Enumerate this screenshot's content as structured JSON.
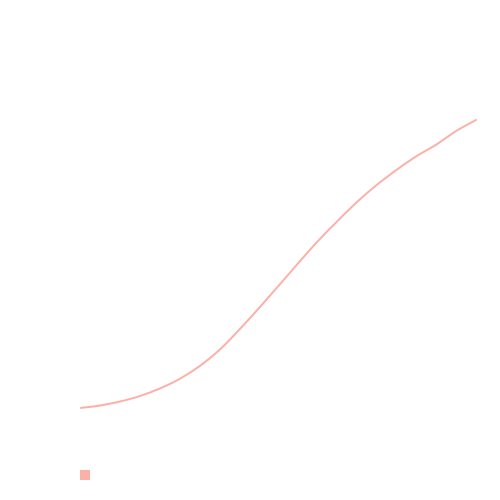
{
  "chart_data": {
    "type": "line",
    "title": "",
    "xlabel": "",
    "ylabel": "",
    "grid": false,
    "axes_visible": false,
    "legend": {
      "placement": "bottom-left",
      "entries": [
        {
          "label": "",
          "color": "#fbb1a8"
        }
      ]
    },
    "series": [
      {
        "name": "",
        "color": "#fbb1a8",
        "x": [
          0,
          5,
          10,
          15,
          20,
          25,
          30,
          35,
          40,
          45,
          50,
          55,
          60,
          65,
          70,
          75,
          80,
          85,
          90,
          95,
          100
        ],
        "y": [
          0,
          0.9,
          2.3,
          4.2,
          6.8,
          10.1,
          14.5,
          20.1,
          27.1,
          34.6,
          42.4,
          50.3,
          58.0,
          65.0,
          71.7,
          77.6,
          82.8,
          87.5,
          91.5,
          96.2,
          100
        ]
      }
    ],
    "xlim": [
      0,
      100
    ],
    "ylim": [
      0,
      100
    ]
  }
}
